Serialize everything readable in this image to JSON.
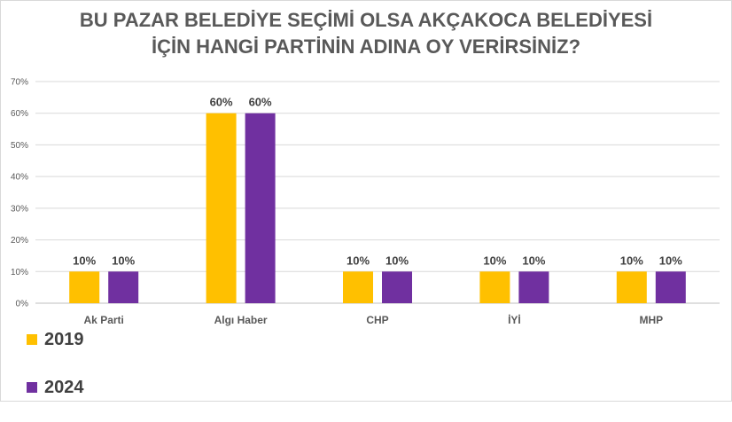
{
  "chart_data": {
    "type": "bar",
    "title_lines": [
      "BU PAZAR BELEDİYE SEÇİMİ OLSA AKÇAKOCA BELEDİYESİ",
      "İÇİN HANGİ PARTİNİN ADINA OY VERİRSİNİZ?"
    ],
    "categories": [
      "Ak Parti",
      "Algı Haber",
      "CHP",
      "İYİ",
      "MHP"
    ],
    "series": [
      {
        "name": "2019",
        "color": "#FFC000",
        "values": [
          10,
          60,
          10,
          10,
          10
        ]
      },
      {
        "name": "2024",
        "color": "#7030A0",
        "values": [
          10,
          60,
          10,
          10,
          10
        ]
      }
    ],
    "data_labels": [
      [
        "10%",
        "60%",
        "10%",
        "10%",
        "10%"
      ],
      [
        "10%",
        "60%",
        "10%",
        "10%",
        "10%"
      ]
    ],
    "y_ticks": [
      "0%",
      "10%",
      "20%",
      "30%",
      "40%",
      "50%",
      "60%",
      "70%"
    ],
    "ylim": [
      0,
      70
    ],
    "grid": true,
    "legend_position": "bottom-left"
  }
}
